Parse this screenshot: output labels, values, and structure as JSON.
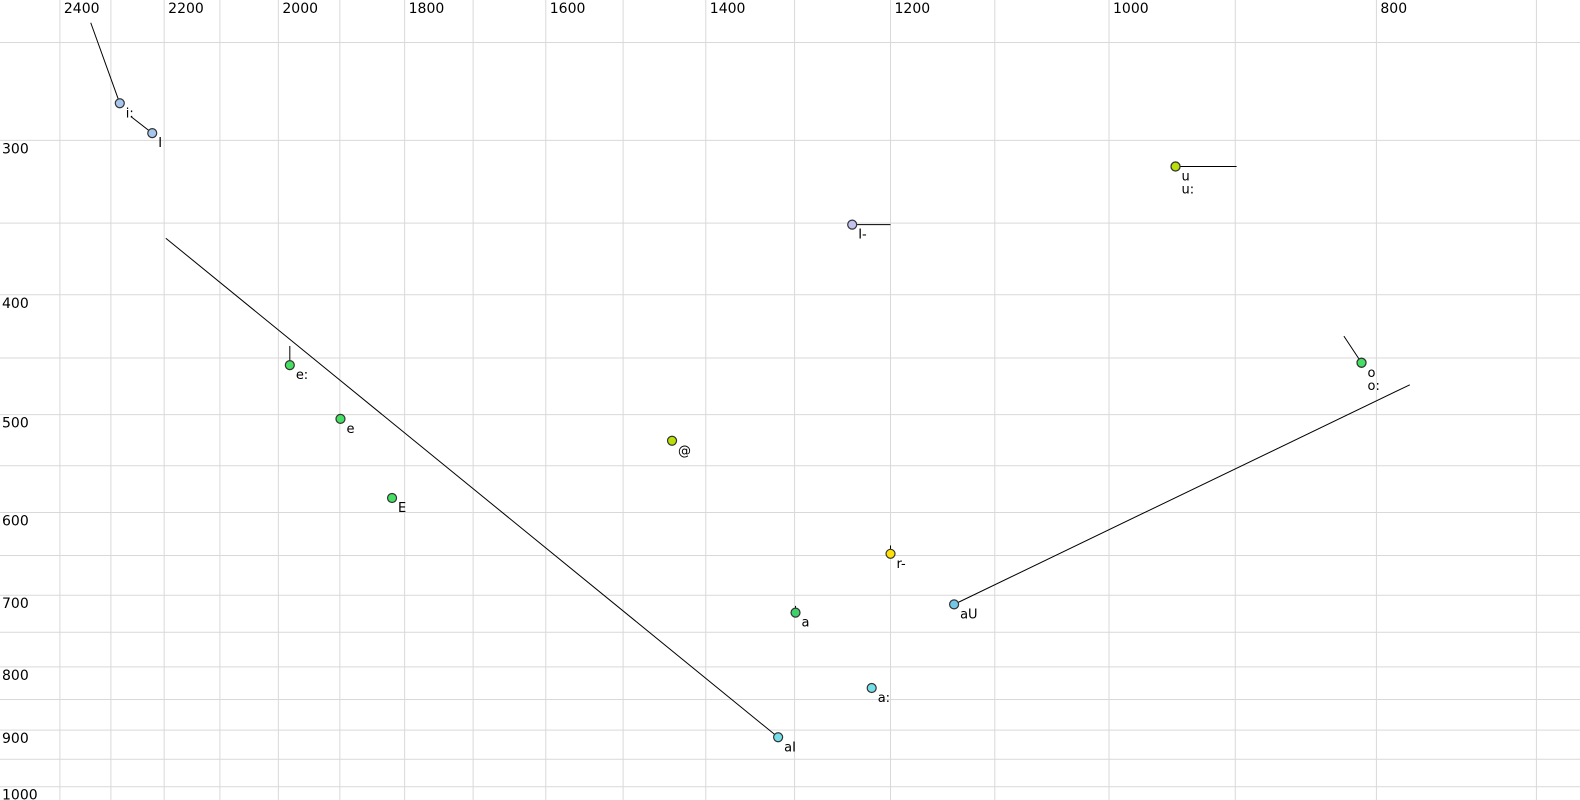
{
  "chart_data": {
    "type": "scatter",
    "title": "",
    "subtitle": "",
    "xlabel": "",
    "ylabel": "",
    "description": "Vowel formant plot (F2 decreasing left-to-right on top axis, F1 increasing downward on left axis), both axes logarithmic, with diphthong/offglide trajectory lines",
    "x_axis": {
      "scale": "log",
      "reversed": true,
      "left_value": 2523,
      "right_value": 675,
      "grid_min": 700,
      "grid_max": 2400,
      "grid_step": 100,
      "tick_values": [
        2400,
        2200,
        2000,
        1800,
        1600,
        1400,
        1200,
        1000,
        800
      ],
      "tick_labels": [
        "2400",
        "2200",
        "2000",
        "1800",
        "1600",
        "1400",
        "1200",
        "1000",
        "800"
      ]
    },
    "y_axis": {
      "scale": "log",
      "top_value": 231,
      "bottom_value": 1025,
      "grid_min": 250,
      "grid_max": 1000,
      "grid_step": 50,
      "tick_values": [
        300,
        400,
        500,
        600,
        700,
        800,
        900,
        1000
      ],
      "tick_labels": [
        "300",
        "400",
        "500",
        "600",
        "700",
        "800",
        "900",
        "1000"
      ]
    },
    "grid": true,
    "grid_color": "#d9d9d9",
    "trajectory_color": "#000000",
    "point_outline_color": "#333333",
    "background_color": "#ffffff",
    "points": [
      {
        "label": "i:",
        "f2": 2283,
        "f1": 280,
        "fill": "#a6c6ee",
        "trajectory": {
          "f2": 2339,
          "f1": 241
        }
      },
      {
        "label": "I",
        "f2": 2222,
        "f1": 296,
        "fill": "#a6c6ee",
        "trajectory": {
          "f2": 2262,
          "f1": 287
        }
      },
      {
        "label": "u",
        "f2": 946,
        "f1": 315,
        "fill": "#b8e008",
        "trajectory": {
          "f2": 899,
          "f1": 315
        }
      },
      {
        "label": "u:",
        "f2": 946,
        "f1": 315,
        "fill": "#b8e008",
        "stacked": true
      },
      {
        "label": "I-",
        "f2": 1239,
        "f1": 351,
        "fill": "#c3c2ee",
        "trajectory": {
          "f2": 1200,
          "f1": 351
        }
      },
      {
        "label": "e:",
        "f2": 1981,
        "f1": 456,
        "fill": "#45df63",
        "trajectory": {
          "f2": 1981,
          "f1": 440
        }
      },
      {
        "label": "e",
        "f2": 1899,
        "f1": 504,
        "fill": "#45df63"
      },
      {
        "label": "@",
        "f2": 1440,
        "f1": 525,
        "fill": "#b8e008"
      },
      {
        "label": "E",
        "f2": 1819,
        "f1": 584,
        "fill": "#45df63"
      },
      {
        "label": "r-",
        "f2": 1200,
        "f1": 648,
        "fill": "#ffe105",
        "trajectory": {
          "f2": 1200,
          "f1": 638
        }
      },
      {
        "label": "a",
        "f2": 1299,
        "f1": 723,
        "fill": "#3ed16b",
        "trajectory": {
          "f2": 1299,
          "f1": 714
        }
      },
      {
        "label": "aU",
        "f2": 1138,
        "f1": 712,
        "fill": "#74c8e6",
        "trajectory": {
          "f2": 778,
          "f1": 473
        }
      },
      {
        "label": "a:",
        "f2": 1219,
        "f1": 832,
        "fill": "#74dfe8"
      },
      {
        "label": "aI",
        "f2": 1318,
        "f1": 912,
        "fill": "#74dfe8",
        "trajectory": {
          "f2": 2197,
          "f1": 360
        }
      },
      {
        "label": "o",
        "f2": 810,
        "f1": 454,
        "fill": "#45df63",
        "trajectory": {
          "f2": 822,
          "f1": 432
        }
      },
      {
        "label": "o:",
        "f2": 810,
        "f1": 454,
        "fill": "#45df63",
        "stacked": true
      }
    ]
  }
}
